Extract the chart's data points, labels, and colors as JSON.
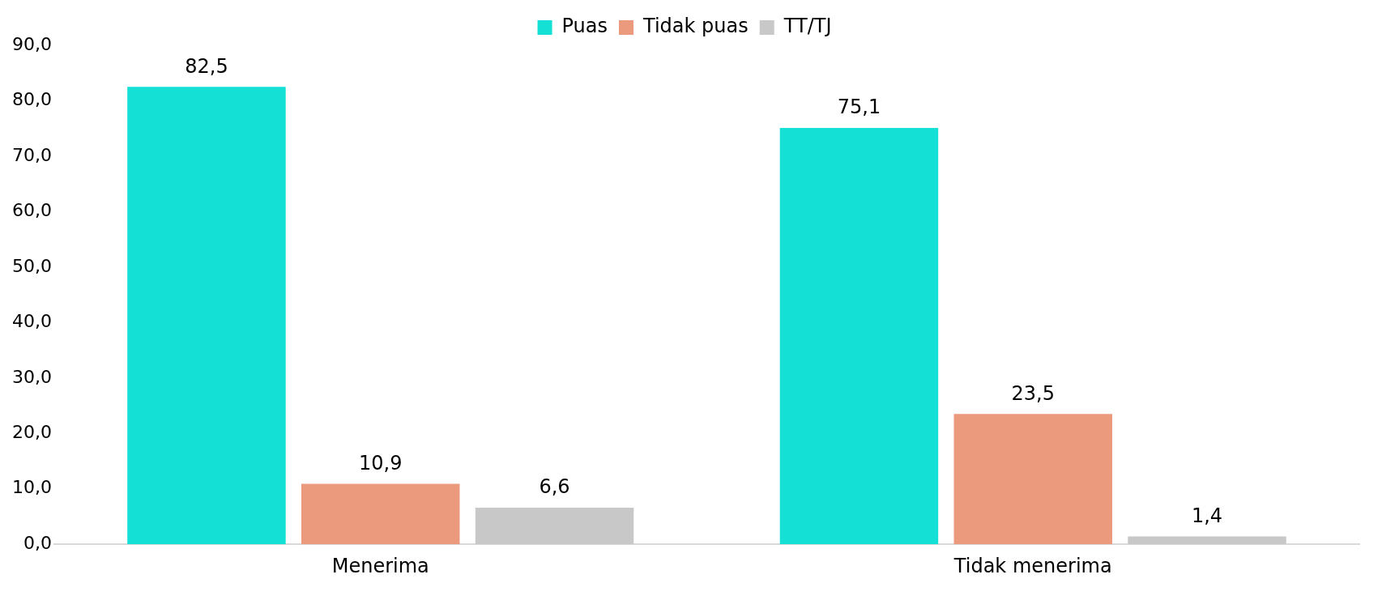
{
  "chart_data": {
    "type": "bar",
    "categories": [
      "Menerima",
      "Tidak menerima"
    ],
    "series": [
      {
        "name": "Puas",
        "color": "#14e0d6",
        "values": [
          82.5,
          75.1
        ],
        "value_labels": [
          "82,5",
          "75,1"
        ]
      },
      {
        "name": "Tidak puas",
        "color": "#ec9a7e",
        "values": [
          10.9,
          23.5
        ],
        "value_labels": [
          "10,9",
          "23,5"
        ]
      },
      {
        "name": "TT/TJ",
        "color": "#c8c8c8",
        "values": [
          6.6,
          1.4
        ],
        "value_labels": [
          "6,6",
          "1,4"
        ]
      }
    ],
    "ylim": [
      0,
      90
    ],
    "yticks": [
      {
        "value": 0,
        "label": "0,0"
      },
      {
        "value": 10,
        "label": "10,0"
      },
      {
        "value": 20,
        "label": "20,0"
      },
      {
        "value": 30,
        "label": "30,0"
      },
      {
        "value": 40,
        "label": "40,0"
      },
      {
        "value": 50,
        "label": "50,0"
      },
      {
        "value": 60,
        "label": "60,0"
      },
      {
        "value": 70,
        "label": "70,0"
      },
      {
        "value": 80,
        "label": "80,0"
      },
      {
        "value": 90,
        "label": "90,0"
      }
    ],
    "grid": false,
    "legend": "top"
  }
}
